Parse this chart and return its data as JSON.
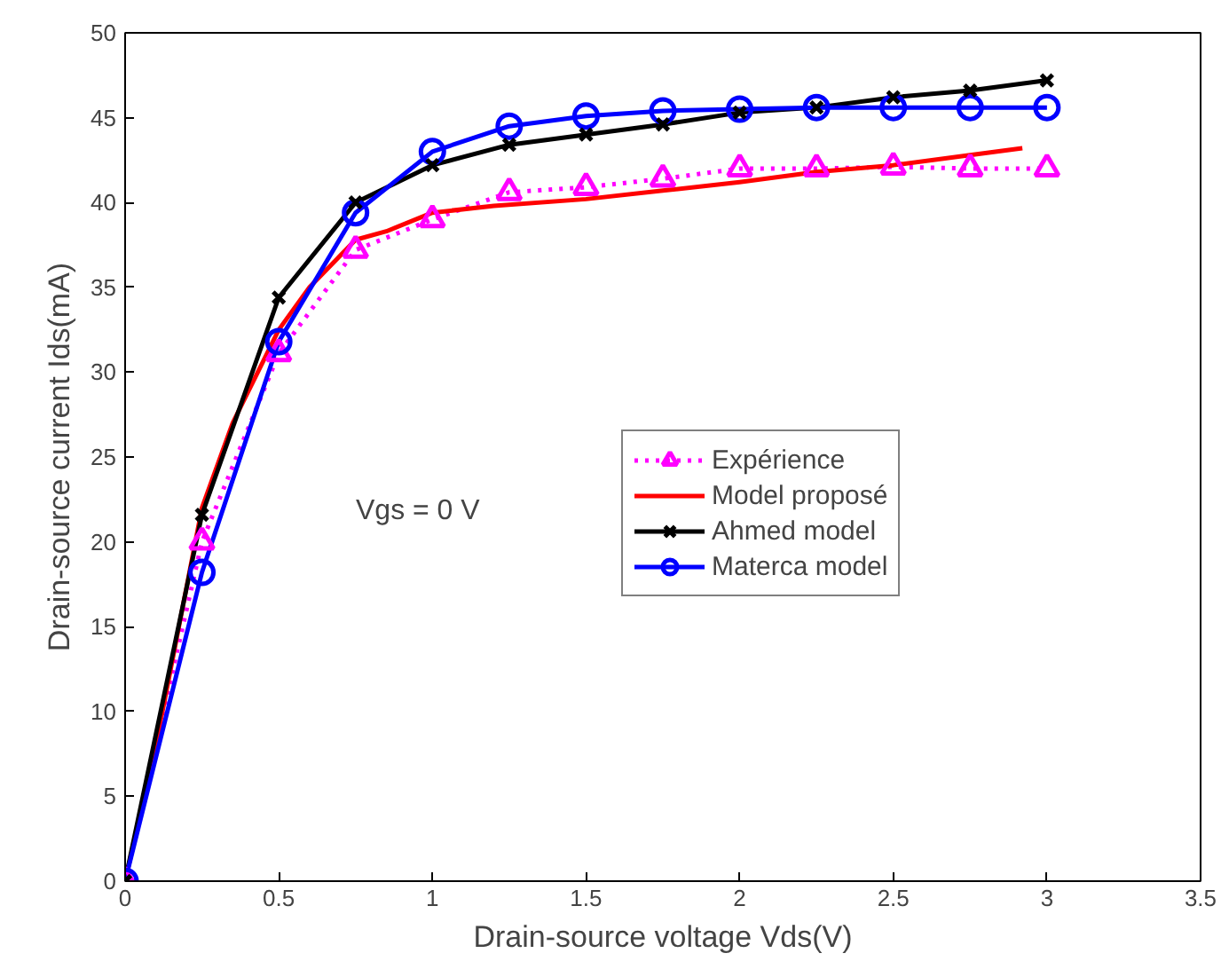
{
  "chart_data": {
    "type": "line",
    "xlabel": "Drain-source voltage Vds(V)",
    "ylabel": "Drain-source current Ids(mA)",
    "xlim": [
      0,
      3.5
    ],
    "ylim": [
      0,
      50
    ],
    "xticks": [
      0,
      0.5,
      1,
      1.5,
      2,
      2.5,
      3,
      3.5
    ],
    "yticks": [
      0,
      5,
      10,
      15,
      20,
      25,
      30,
      35,
      40,
      45,
      50
    ],
    "grid": false,
    "legend": "center right",
    "annotations": [
      "Vgs = 0 V"
    ],
    "series": [
      {
        "name": "Expérience",
        "color": "#ff00ff",
        "marker": "triangle",
        "line_style": "dotted",
        "x": [
          0,
          0.25,
          0.5,
          0.75,
          1,
          1.25,
          1.5,
          1.75,
          2,
          2.25,
          2.5,
          2.75,
          3
        ],
        "values": [
          0,
          20,
          31.1,
          37.2,
          39,
          40.6,
          40.9,
          41.4,
          42,
          42,
          42.1,
          42,
          42
        ]
      },
      {
        "name": "Model proposé",
        "color": "#ff0000",
        "marker": "none",
        "line_style": "solid",
        "x": [
          0,
          0.1,
          0.25,
          0.35,
          0.5,
          0.6,
          0.75,
          0.85,
          1,
          1.2,
          1.5,
          1.75,
          2,
          2.25,
          2.5,
          2.75,
          2.92
        ],
        "values": [
          0,
          8,
          22,
          27,
          32.5,
          35,
          37.8,
          38.3,
          39.4,
          39.8,
          40.2,
          40.7,
          41.2,
          41.8,
          42.2,
          42.8,
          43.2
        ]
      },
      {
        "name": "Ahmed model",
        "color": "#000000",
        "marker": "cross",
        "line_style": "solid",
        "x": [
          0,
          0.25,
          0.5,
          0.75,
          1,
          1.25,
          1.5,
          1.75,
          2,
          2.25,
          2.5,
          2.75,
          3
        ],
        "values": [
          0,
          21.6,
          34.4,
          40,
          42.2,
          43.4,
          44,
          44.6,
          45.3,
          45.6,
          46.2,
          46.6,
          47.2
        ]
      },
      {
        "name": "Materca model",
        "color": "#0000ff",
        "marker": "circle",
        "line_style": "solid",
        "x": [
          0,
          0.25,
          0.5,
          0.75,
          1,
          1.25,
          1.5,
          1.75,
          2,
          2.25,
          2.5,
          2.75,
          3
        ],
        "values": [
          0,
          18.2,
          31.8,
          39.4,
          43,
          44.5,
          45.1,
          45.4,
          45.5,
          45.6,
          45.6,
          45.6,
          45.6
        ]
      }
    ]
  }
}
